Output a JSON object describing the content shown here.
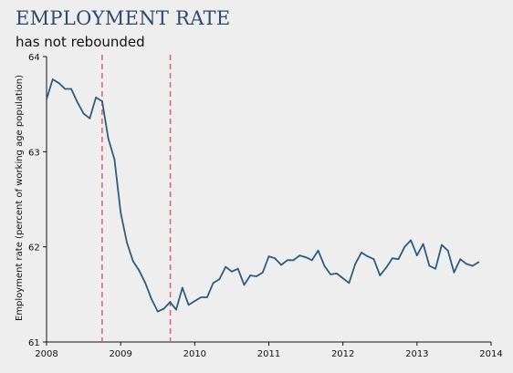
{
  "header": {
    "title": "EMPLOYMENT RATE",
    "subtitle": "has not rebounded"
  },
  "colors": {
    "background": "#eeeeee",
    "title": "#2c4a6e",
    "line": "#2e5b7f",
    "reference_line": "#e05c6e",
    "axis": "#111111"
  },
  "chart_data": {
    "type": "line",
    "title": "EMPLOYMENT RATE",
    "subtitle": "has not rebounded",
    "xlabel": "",
    "ylabel": "Employment rate (percent of working age population)",
    "xlim": [
      2008,
      2014
    ],
    "ylim": [
      61,
      64
    ],
    "xticks": [
      2008,
      2009,
      2010,
      2011,
      2012,
      2013,
      2014
    ],
    "yticks": [
      61,
      62,
      63,
      64
    ],
    "grid": false,
    "reference_lines_x": [
      2008.75,
      2009.67
    ],
    "series": [
      {
        "x": [
          2008.0,
          2008.083,
          2008.167,
          2008.25,
          2008.333,
          2008.417,
          2008.5,
          2008.583,
          2008.667,
          2008.75,
          2008.833,
          2008.917,
          2009.0,
          2009.083,
          2009.167,
          2009.25,
          2009.333,
          2009.417,
          2009.5,
          2009.583,
          2009.667,
          2009.75,
          2009.833,
          2009.917,
          2010.0,
          2010.083,
          2010.167,
          2010.25,
          2010.333,
          2010.417,
          2010.5,
          2010.583,
          2010.667,
          2010.75,
          2010.833,
          2010.917,
          2011.0,
          2011.083,
          2011.167,
          2011.25,
          2011.333,
          2011.417,
          2011.5,
          2011.583,
          2011.667,
          2011.75,
          2011.833,
          2011.917,
          2012.0,
          2012.083,
          2012.167,
          2012.25,
          2012.333,
          2012.417,
          2012.5,
          2012.583,
          2012.667,
          2012.75,
          2012.833,
          2012.917,
          2013.0,
          2013.083,
          2013.167,
          2013.25,
          2013.333,
          2013.417,
          2013.5,
          2013.583,
          2013.667,
          2013.75,
          2013.833
        ],
        "values": [
          63.55,
          63.76,
          63.72,
          63.66,
          63.66,
          63.52,
          63.4,
          63.35,
          63.57,
          63.53,
          63.14,
          62.92,
          62.36,
          62.05,
          61.85,
          61.75,
          61.62,
          61.45,
          61.32,
          61.35,
          61.42,
          61.34,
          61.57,
          61.39,
          61.43,
          61.47,
          61.47,
          61.62,
          61.66,
          61.79,
          61.74,
          61.77,
          61.6,
          61.7,
          61.69,
          61.73,
          61.9,
          61.88,
          61.81,
          61.86,
          61.86,
          61.91,
          61.89,
          61.86,
          61.96,
          61.8,
          61.71,
          61.72,
          61.67,
          61.62,
          61.82,
          61.94,
          61.9,
          61.87,
          61.7,
          61.78,
          61.88,
          61.87,
          62.0,
          62.07,
          61.91,
          62.03,
          61.8,
          61.77,
          62.02,
          61.96,
          61.73,
          61.87,
          61.82,
          61.8,
          61.84
        ]
      }
    ]
  }
}
